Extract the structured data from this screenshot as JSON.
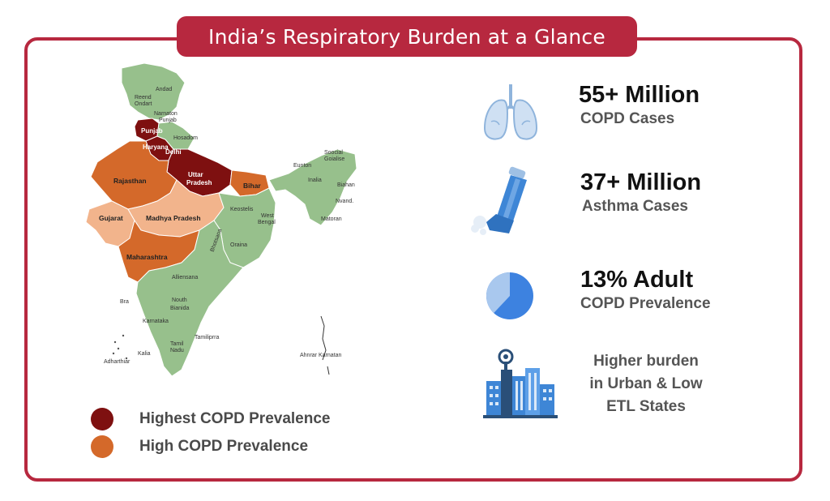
{
  "title": "India’s Respiratory Burden at a Glance",
  "colors": {
    "accent": "#b7283f",
    "highest": "#7e1010",
    "high": "#d4692a",
    "moderate": "#f2b48c",
    "low": "#97c08c"
  },
  "map": {
    "labels": {
      "andad": "Andad",
      "reend": "Reend",
      "ondart": "Ondart",
      "narnaton": "Narnaton",
      "punjab_n": "Punjab",
      "punjab": "Punjab",
      "haryana": "Haryana",
      "delhi": "Delhi",
      "hosadom": "Hosadom",
      "uttar": "Uttar",
      "pradesh": "Pradesh",
      "rajasthan": "Rajasthan",
      "bihar": "Bihar",
      "gujarat": "Gujarat",
      "madhya": "Madhya Pradesh",
      "keostelis": "Keostelis",
      "west": "West",
      "bengal": "Bengal",
      "bhotsana": "Bhotsana",
      "oraina": "Oraina",
      "maharashtra": "Maharashtra",
      "alliensana": "Alliensana",
      "bra": "Bra",
      "nouth": "Nouth",
      "bianida": "Bianida",
      "karnataka": "Karnataka",
      "tamiliprra": "Tamiliprra",
      "tamil": "Tamil",
      "nadu": "Nadu",
      "kalia": "Kalia",
      "adharthiar": "Adharthiar",
      "soocial": "Soocial",
      "goialise": "Goialise",
      "eunton": "Eunton",
      "inalia": "Inalia",
      "biahan": "Biahan",
      "nvand": "Nvand.",
      "matoran": "Matoran",
      "ahnrar": "Ahnrar Karnatan"
    }
  },
  "legend": [
    {
      "label": "Highest COPD Prevalence",
      "color": "#7e1010"
    },
    {
      "label": "High COPD Prevalence",
      "color": "#d4692a"
    }
  ],
  "stats": {
    "copd": {
      "value": "55+ Million",
      "label": "COPD Cases",
      "icon": "lungs-icon"
    },
    "asthma": {
      "value": "37+ Million",
      "label": "Asthma Cases",
      "icon": "inhaler-icon"
    },
    "prevalence": {
      "value": "13% Adult",
      "label": "COPD Prevalence",
      "fraction": 0.13,
      "icon": "pie-chart-icon"
    },
    "urban": {
      "line1": "Higher burden",
      "line2": "in Urban & Low",
      "line3": "ETL States",
      "icon": "city-buildings-icon"
    }
  }
}
